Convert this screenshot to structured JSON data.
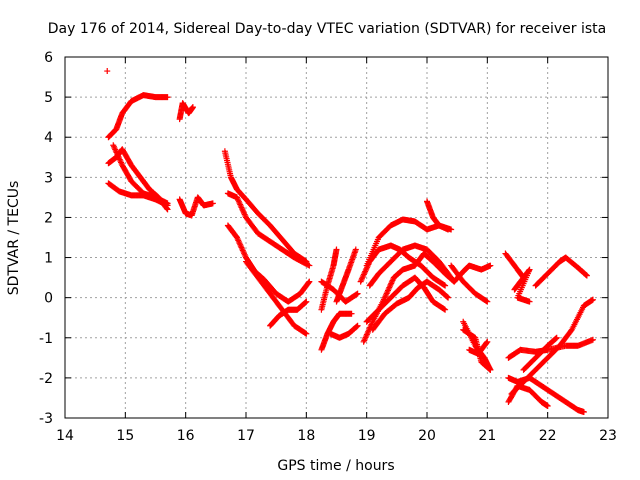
{
  "chart_data": {
    "type": "scatter",
    "title": "Day 176 of 2014, Sidereal Day-to-day VTEC variation (SDTVAR) for receiver ista",
    "xlabel": "GPS time / hours",
    "ylabel": "SDTVAR / TECUs",
    "xlim": [
      14,
      23
    ],
    "ylim": [
      -3,
      6
    ],
    "xticks": [
      "14",
      "15",
      "16",
      "17",
      "18",
      "19",
      "20",
      "21",
      "22",
      "23"
    ],
    "yticks": [
      "-3",
      "-2",
      "-1",
      "0",
      "1",
      "2",
      "3",
      "4",
      "5",
      "6"
    ],
    "grid": true,
    "marker": "+",
    "color": "#ff0000",
    "arcs": [
      [
        [
          14.7,
          5.65
        ]
      ],
      [
        [
          14.72,
          4.0
        ],
        [
          14.85,
          4.2
        ],
        [
          14.95,
          4.6
        ],
        [
          15.1,
          4.9
        ],
        [
          15.3,
          5.05
        ],
        [
          15.5,
          5.0
        ],
        [
          15.7,
          5.0
        ]
      ],
      [
        [
          14.72,
          3.35
        ],
        [
          14.85,
          3.5
        ],
        [
          14.95,
          3.7
        ],
        [
          15.1,
          3.3
        ],
        [
          15.25,
          3.0
        ],
        [
          15.4,
          2.7
        ],
        [
          15.55,
          2.5
        ],
        [
          15.7,
          2.2
        ]
      ],
      [
        [
          14.72,
          2.85
        ],
        [
          14.9,
          2.65
        ],
        [
          15.1,
          2.55
        ],
        [
          15.3,
          2.55
        ],
        [
          15.5,
          2.45
        ],
        [
          15.7,
          2.3
        ]
      ],
      [
        [
          14.8,
          3.8
        ],
        [
          14.95,
          3.3
        ],
        [
          15.1,
          2.9
        ],
        [
          15.3,
          2.6
        ],
        [
          15.5,
          2.5
        ],
        [
          15.7,
          2.35
        ]
      ],
      [
        [
          15.9,
          4.45
        ],
        [
          15.95,
          4.85
        ],
        [
          16.05,
          4.6
        ],
        [
          16.12,
          4.75
        ]
      ],
      [
        [
          15.9,
          2.45
        ],
        [
          16.0,
          2.1
        ],
        [
          16.1,
          2.05
        ],
        [
          16.2,
          2.5
        ],
        [
          16.3,
          2.3
        ],
        [
          16.45,
          2.35
        ]
      ],
      [
        [
          16.65,
          3.65
        ],
        [
          16.75,
          3.0
        ],
        [
          16.85,
          2.7
        ],
        [
          17.0,
          2.45
        ],
        [
          17.2,
          2.1
        ],
        [
          17.4,
          1.8
        ],
        [
          17.6,
          1.45
        ],
        [
          17.8,
          1.1
        ],
        [
          18.0,
          0.9
        ]
      ],
      [
        [
          16.7,
          2.6
        ],
        [
          16.85,
          2.5
        ],
        [
          17.0,
          2.0
        ],
        [
          17.2,
          1.6
        ],
        [
          17.4,
          1.4
        ],
        [
          17.6,
          1.2
        ],
        [
          17.8,
          1.0
        ],
        [
          18.05,
          0.8
        ]
      ],
      [
        [
          16.7,
          1.8
        ],
        [
          16.85,
          1.5
        ],
        [
          17.0,
          1.0
        ],
        [
          17.15,
          0.65
        ],
        [
          17.3,
          0.45
        ],
        [
          17.5,
          0.1
        ],
        [
          17.7,
          -0.1
        ],
        [
          17.9,
          0.1
        ],
        [
          18.05,
          0.4
        ]
      ],
      [
        [
          17.0,
          0.9
        ],
        [
          17.2,
          0.5
        ],
        [
          17.4,
          0.1
        ],
        [
          17.6,
          -0.3
        ],
        [
          17.8,
          -0.7
        ],
        [
          18.0,
          -0.9
        ]
      ],
      [
        [
          17.4,
          -0.7
        ],
        [
          17.55,
          -0.45
        ],
        [
          17.7,
          -0.3
        ],
        [
          17.85,
          -0.3
        ],
        [
          18.0,
          -0.1
        ]
      ],
      [
        [
          18.25,
          -1.3
        ],
        [
          18.35,
          -0.9
        ],
        [
          18.45,
          -0.6
        ],
        [
          18.55,
          -0.4
        ],
        [
          18.75,
          -0.4
        ]
      ],
      [
        [
          18.25,
          -0.3
        ],
        [
          18.35,
          0.3
        ],
        [
          18.45,
          0.8
        ],
        [
          18.5,
          1.2
        ]
      ],
      [
        [
          18.4,
          -0.9
        ],
        [
          18.55,
          -1.0
        ],
        [
          18.7,
          -0.9
        ],
        [
          18.85,
          -0.7
        ]
      ],
      [
        [
          18.5,
          -0.1
        ],
        [
          18.6,
          0.3
        ],
        [
          18.7,
          0.7
        ],
        [
          18.82,
          1.2
        ]
      ],
      [
        [
          18.25,
          0.4
        ],
        [
          18.45,
          0.2
        ],
        [
          18.65,
          -0.1
        ],
        [
          18.85,
          0.1
        ]
      ],
      [
        [
          18.9,
          0.4
        ],
        [
          19.05,
          0.9
        ],
        [
          19.2,
          1.2
        ],
        [
          19.4,
          1.3
        ],
        [
          19.55,
          1.2
        ],
        [
          19.7,
          1.0
        ],
        [
          19.9,
          0.8
        ],
        [
          20.1,
          0.5
        ],
        [
          20.3,
          0.3
        ]
      ],
      [
        [
          18.95,
          -1.1
        ],
        [
          19.1,
          -0.6
        ],
        [
          19.3,
          0.0
        ],
        [
          19.45,
          0.5
        ],
        [
          19.6,
          0.7
        ],
        [
          19.8,
          0.8
        ],
        [
          19.95,
          1.1
        ],
        [
          20.1,
          0.9
        ],
        [
          20.3,
          0.6
        ],
        [
          20.45,
          0.4
        ]
      ],
      [
        [
          19.0,
          0.8
        ],
        [
          19.2,
          1.5
        ],
        [
          19.4,
          1.8
        ],
        [
          19.6,
          1.95
        ],
        [
          19.8,
          1.9
        ],
        [
          20.0,
          1.7
        ],
        [
          20.2,
          1.8
        ],
        [
          20.4,
          1.7
        ]
      ],
      [
        [
          19.0,
          -0.6
        ],
        [
          19.2,
          -0.3
        ],
        [
          19.4,
          0.0
        ],
        [
          19.6,
          0.3
        ],
        [
          19.8,
          0.5
        ],
        [
          19.95,
          0.25
        ],
        [
          20.1,
          -0.1
        ],
        [
          20.3,
          -0.3
        ]
      ],
      [
        [
          19.05,
          0.3
        ],
        [
          19.2,
          0.6
        ],
        [
          19.4,
          0.9
        ],
        [
          19.6,
          1.2
        ],
        [
          19.8,
          1.3
        ],
        [
          20.0,
          1.2
        ],
        [
          20.2,
          0.9
        ],
        [
          20.4,
          0.5
        ]
      ],
      [
        [
          19.1,
          -0.8
        ],
        [
          19.3,
          -0.4
        ],
        [
          19.5,
          -0.15
        ],
        [
          19.7,
          0.0
        ],
        [
          19.85,
          0.25
        ],
        [
          20.0,
          0.4
        ],
        [
          20.2,
          0.2
        ],
        [
          20.35,
          0.0
        ]
      ],
      [
        [
          20.0,
          2.4
        ],
        [
          20.1,
          2.0
        ],
        [
          20.2,
          1.8
        ],
        [
          20.35,
          1.7
        ]
      ],
      [
        [
          20.45,
          0.4
        ],
        [
          20.6,
          0.65
        ],
        [
          20.7,
          0.8
        ],
        [
          20.9,
          0.7
        ],
        [
          21.05,
          0.8
        ]
      ],
      [
        [
          20.4,
          0.8
        ],
        [
          20.6,
          0.4
        ],
        [
          20.8,
          0.1
        ],
        [
          21.0,
          -0.1
        ]
      ],
      [
        [
          20.6,
          -0.8
        ],
        [
          20.8,
          -1.0
        ],
        [
          20.9,
          -1.6
        ],
        [
          21.05,
          -1.8
        ]
      ],
      [
        [
          20.6,
          -0.6
        ],
        [
          20.8,
          -1.2
        ],
        [
          20.95,
          -1.5
        ],
        [
          21.05,
          -1.8
        ]
      ],
      [
        [
          20.7,
          -1.3
        ],
        [
          20.85,
          -1.4
        ],
        [
          21.0,
          -1.1
        ]
      ],
      [
        [
          21.3,
          1.1
        ],
        [
          21.5,
          0.7
        ],
        [
          21.6,
          0.5
        ]
      ],
      [
        [
          21.45,
          0.2
        ],
        [
          21.55,
          0.4
        ],
        [
          21.7,
          0.7
        ],
        [
          21.5,
          0.0
        ],
        [
          21.7,
          -0.1
        ]
      ],
      [
        [
          21.35,
          -2.6
        ],
        [
          21.5,
          -2.2
        ],
        [
          21.7,
          -2.3
        ],
        [
          21.9,
          -2.6
        ],
        [
          22.0,
          -2.7
        ]
      ],
      [
        [
          21.35,
          -2.0
        ],
        [
          21.5,
          -2.1
        ],
        [
          21.7,
          -2.0
        ],
        [
          21.9,
          -2.2
        ],
        [
          22.1,
          -2.4
        ],
        [
          22.3,
          -2.6
        ],
        [
          22.5,
          -2.8
        ],
        [
          22.6,
          -2.85
        ]
      ],
      [
        [
          21.35,
          -1.5
        ],
        [
          21.55,
          -1.3
        ],
        [
          21.8,
          -1.35
        ],
        [
          22.0,
          -1.3
        ],
        [
          22.3,
          -1.2
        ],
        [
          22.5,
          -1.2
        ],
        [
          22.75,
          -1.05
        ]
      ],
      [
        [
          21.4,
          -2.4
        ],
        [
          21.6,
          -2.1
        ],
        [
          21.8,
          -1.8
        ],
        [
          22.0,
          -1.5
        ],
        [
          22.2,
          -1.2
        ],
        [
          22.4,
          -0.8
        ],
        [
          22.6,
          -0.2
        ],
        [
          22.75,
          -0.05
        ]
      ],
      [
        [
          21.8,
          0.3
        ],
        [
          22.0,
          0.6
        ],
        [
          22.2,
          0.9
        ],
        [
          22.3,
          1.0
        ],
        [
          22.5,
          0.75
        ],
        [
          22.65,
          0.55
        ]
      ],
      [
        [
          21.6,
          -1.8
        ],
        [
          21.8,
          -1.5
        ],
        [
          22.0,
          -1.2
        ],
        [
          22.15,
          -1.0
        ]
      ]
    ]
  }
}
